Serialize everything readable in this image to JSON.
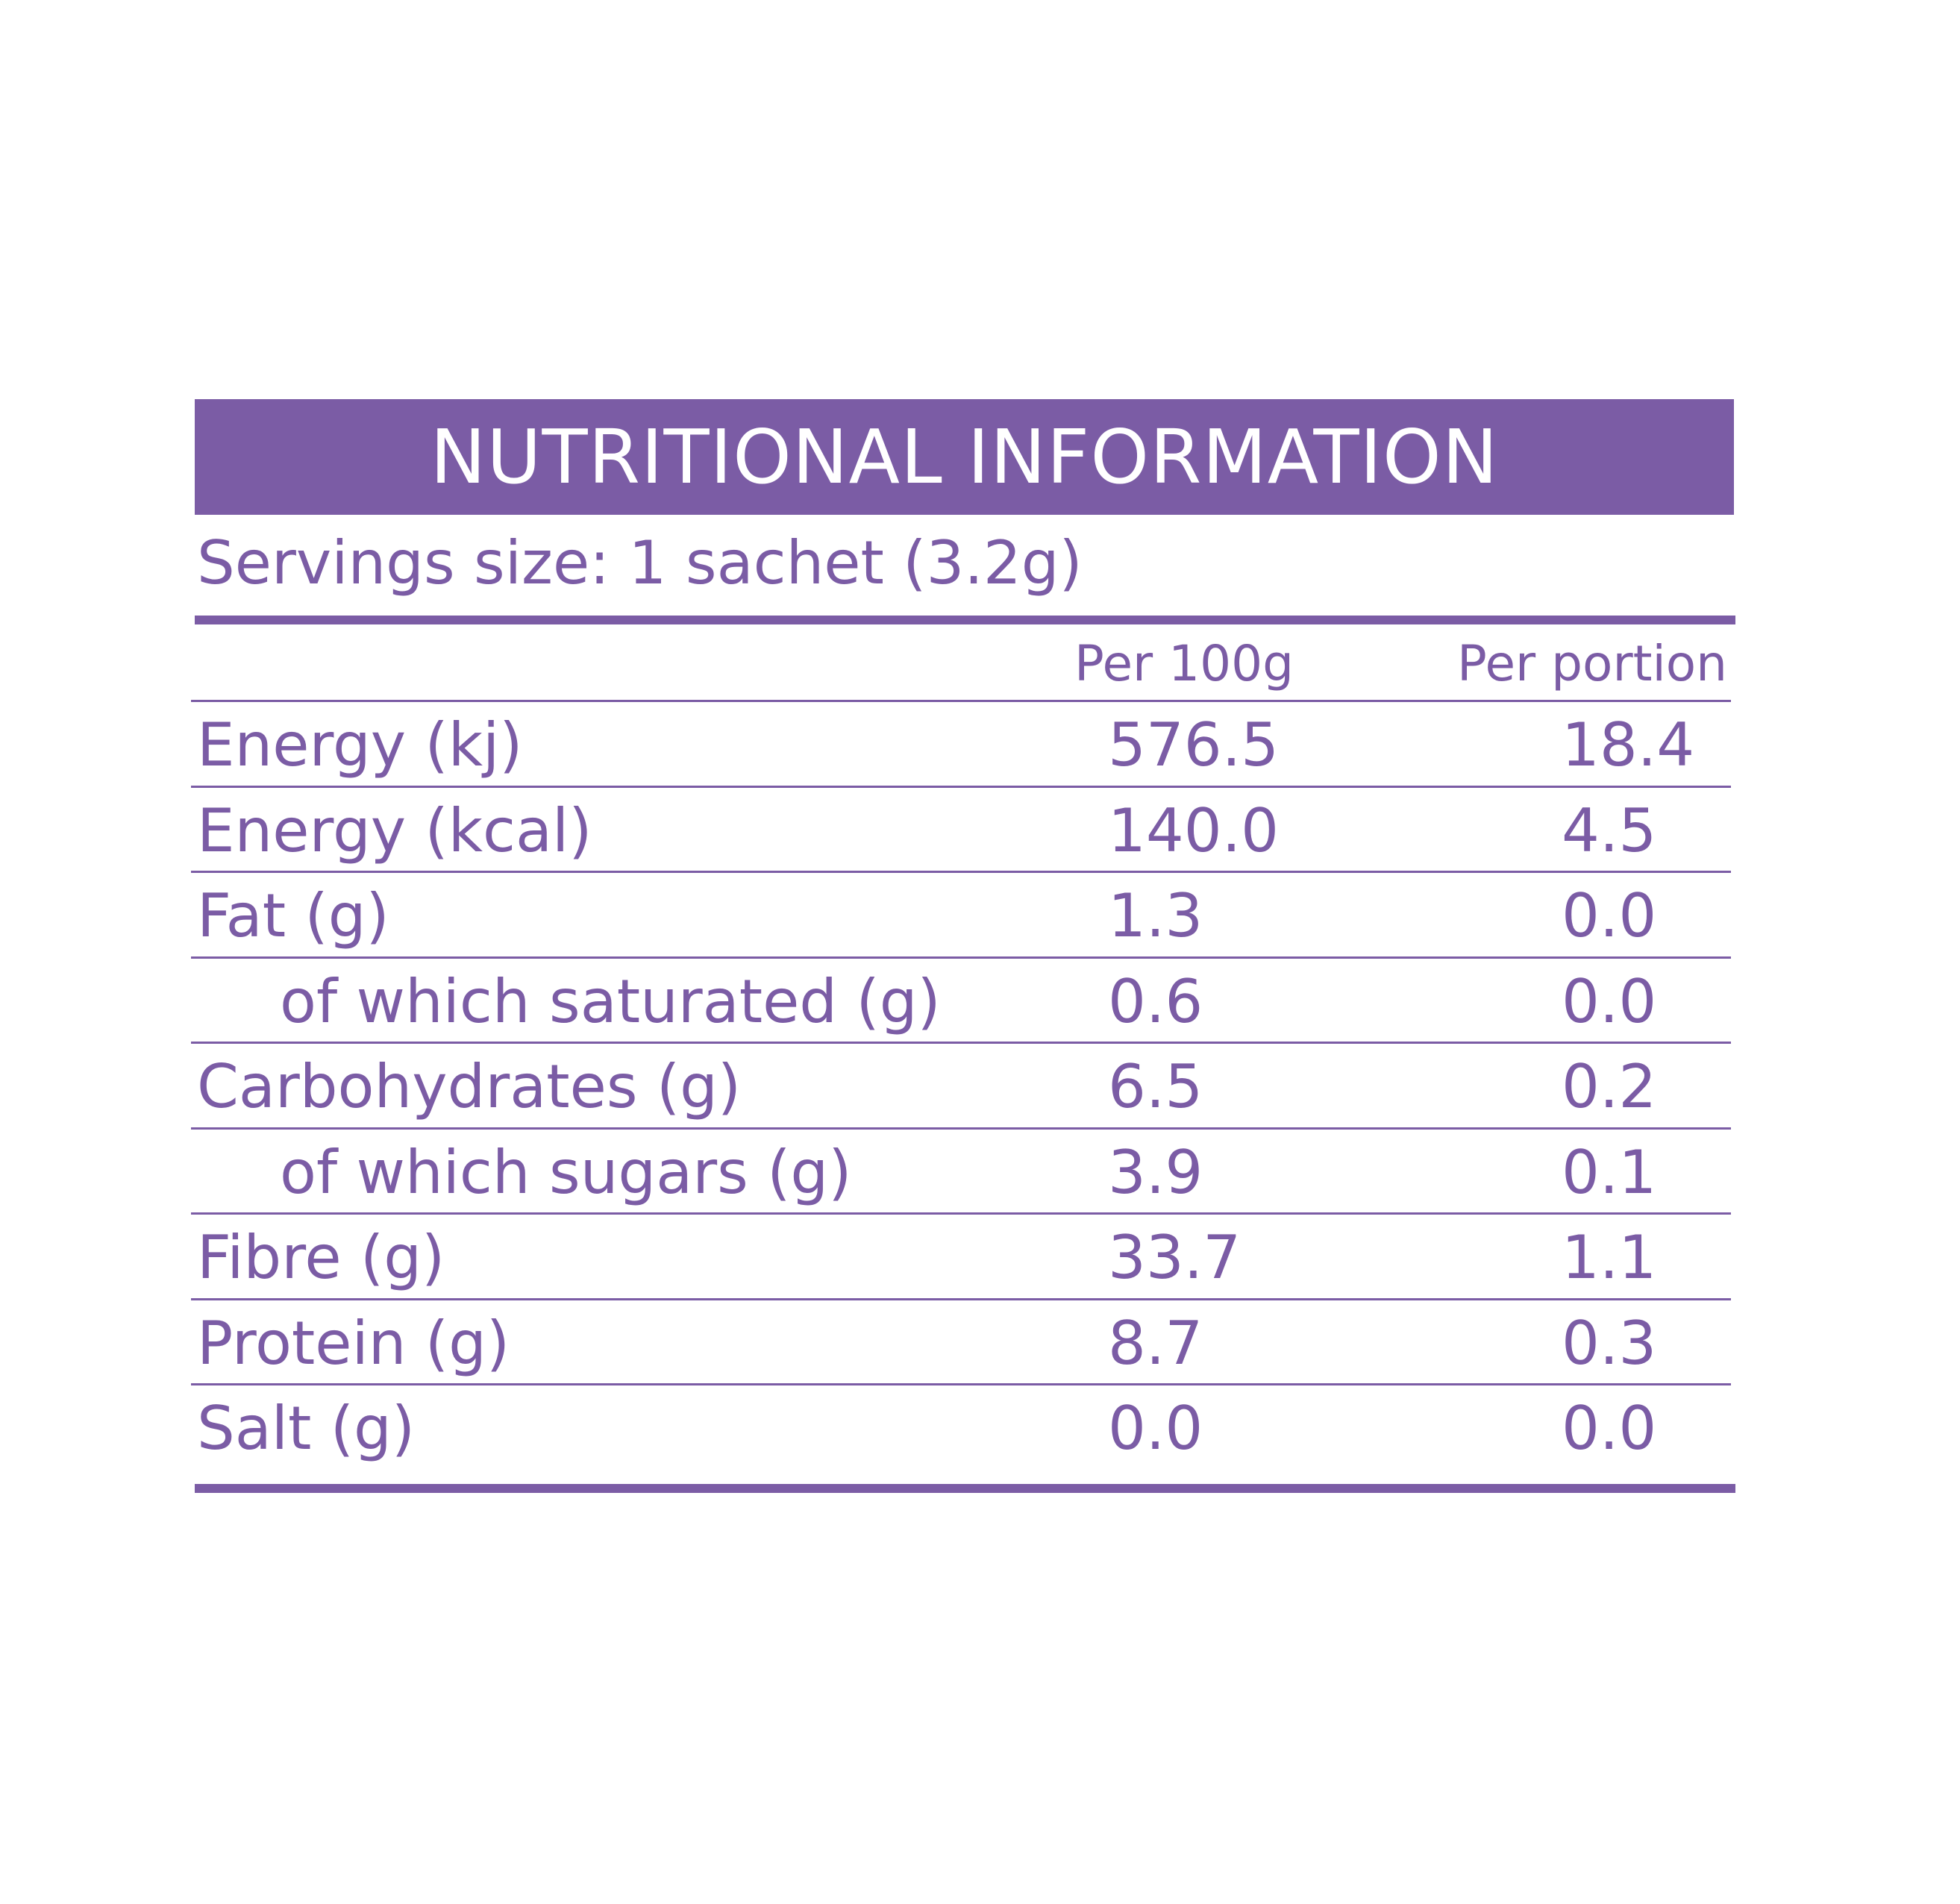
{
  "title": "NUTRITIONAL INFORMATION",
  "serving_size": "Servings size: 1 sachet (3.2g)",
  "columns": {
    "per_100g": "Per 100g",
    "per_portion": "Per portion"
  },
  "rows": [
    {
      "label": "Energy (kj)",
      "per_100g": "576.5",
      "per_portion": "18.4"
    },
    {
      "label": "Energy (kcal)",
      "per_100g": "140.0",
      "per_portion": "4.5"
    },
    {
      "label": "Fat (g)",
      "per_100g": "1.3",
      "per_portion": "0.0"
    },
    {
      "label": "of which saturated (g)",
      "per_100g": "0.6",
      "per_portion": "0.0"
    },
    {
      "label": "Carbohydrates (g)",
      "per_100g": "6.5",
      "per_portion": "0.2"
    },
    {
      "label": "of which sugars (g)",
      "per_100g": "3.9",
      "per_portion": "0.1"
    },
    {
      "label": "Fibre (g)",
      "per_100g": "33.7",
      "per_portion": "1.1"
    },
    {
      "label": "Protein (g)",
      "per_100g": "8.7",
      "per_portion": "0.3"
    },
    {
      "label": "Salt (g)",
      "per_100g": "0.0",
      "per_portion": "0.0"
    }
  ],
  "colors": {
    "accent": "#7b5ca5",
    "background": "#ffffff"
  }
}
